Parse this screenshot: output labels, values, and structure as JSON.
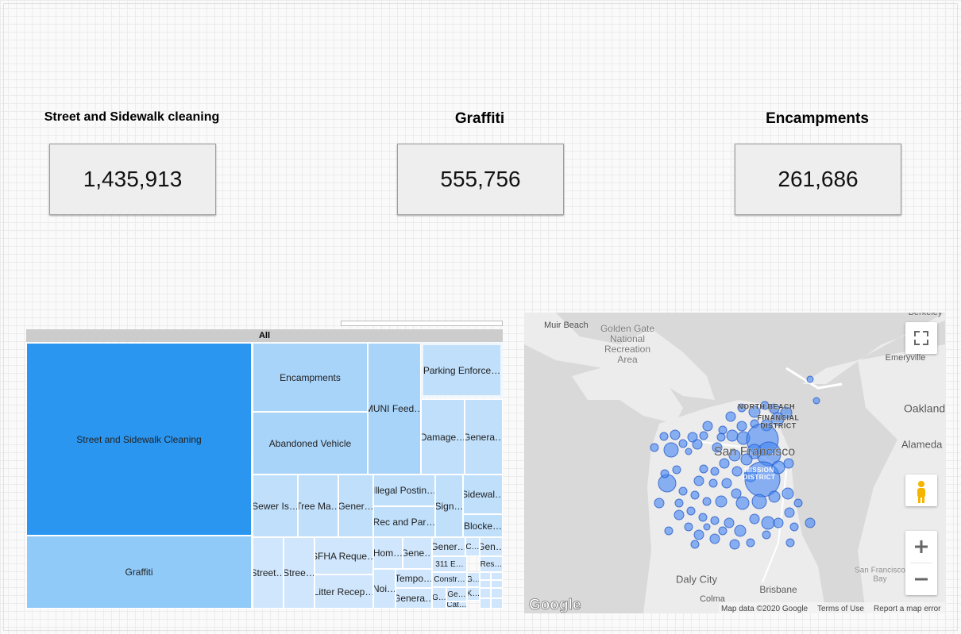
{
  "scorecards": [
    {
      "label": "Street and Sidewalk cleaning",
      "value": "1,435,913"
    },
    {
      "label": "Graffiti",
      "value": "555,756"
    },
    {
      "label": "Encampments",
      "value": "261,686"
    }
  ],
  "treemap": {
    "root": "All",
    "cells": [
      {
        "label": "Street and Sidewalk Cleaning"
      },
      {
        "label": "Graffiti"
      },
      {
        "label": "Encampments"
      },
      {
        "label": "Abandoned Vehicle"
      },
      {
        "label": "MUNI Feed…"
      },
      {
        "label": "Parking Enforce…"
      },
      {
        "label": "Damage…"
      },
      {
        "label": "Genera…"
      },
      {
        "label": "Sewer Is…"
      },
      {
        "label": "Tree Ma…"
      },
      {
        "label": "Gener…"
      },
      {
        "label": "Illegal Postin…"
      },
      {
        "label": "Rec and Par…"
      },
      {
        "label": "Sign…"
      },
      {
        "label": "Sidewal…"
      },
      {
        "label": "Blocke…"
      },
      {
        "label": "Street…"
      },
      {
        "label": "Stree…"
      },
      {
        "label": "SFHA Reque…"
      },
      {
        "label": "Litter Recep…"
      },
      {
        "label": "Hom…"
      },
      {
        "label": "Gene…"
      },
      {
        "label": "Gener…"
      },
      {
        "label": "C…"
      },
      {
        "label": "Gen…"
      },
      {
        "label": "311 E…"
      },
      {
        "label": "Res…"
      },
      {
        "label": "Noi…"
      },
      {
        "label": "Tempo…"
      },
      {
        "label": "Genera…"
      },
      {
        "label": "Constr…"
      },
      {
        "label": "G…"
      },
      {
        "label": "G…"
      },
      {
        "label": "Ge…"
      },
      {
        "label": "K…"
      },
      {
        "label": "Cat…"
      }
    ]
  },
  "map": {
    "places": [
      {
        "lines": [
          "Muir Beach"
        ]
      },
      {
        "lines": [
          "Golden Gate",
          "National",
          "Recreation",
          "Area"
        ]
      },
      {
        "lines": [
          "Berkeley"
        ]
      },
      {
        "lines": [
          "Emeryville"
        ]
      },
      {
        "lines": [
          "Oakland"
        ]
      },
      {
        "lines": [
          "Alameda"
        ]
      },
      {
        "lines": [
          "NORTH BEACH"
        ]
      },
      {
        "lines": [
          "FINANCIAL",
          "DISTRICT"
        ]
      },
      {
        "lines": [
          "San Francisco"
        ]
      },
      {
        "lines": [
          "MISSION",
          "DISTRICT"
        ]
      },
      {
        "lines": [
          "Daly City"
        ]
      },
      {
        "lines": [
          "Brisbane"
        ]
      },
      {
        "lines": [
          "Colma"
        ]
      },
      {
        "lines": [
          "San Francisco",
          "Bay"
        ]
      }
    ],
    "logo": "Google",
    "attribution": "Map data ©2020 Google",
    "terms": "Terms of Use",
    "report": "Report a map error"
  }
}
